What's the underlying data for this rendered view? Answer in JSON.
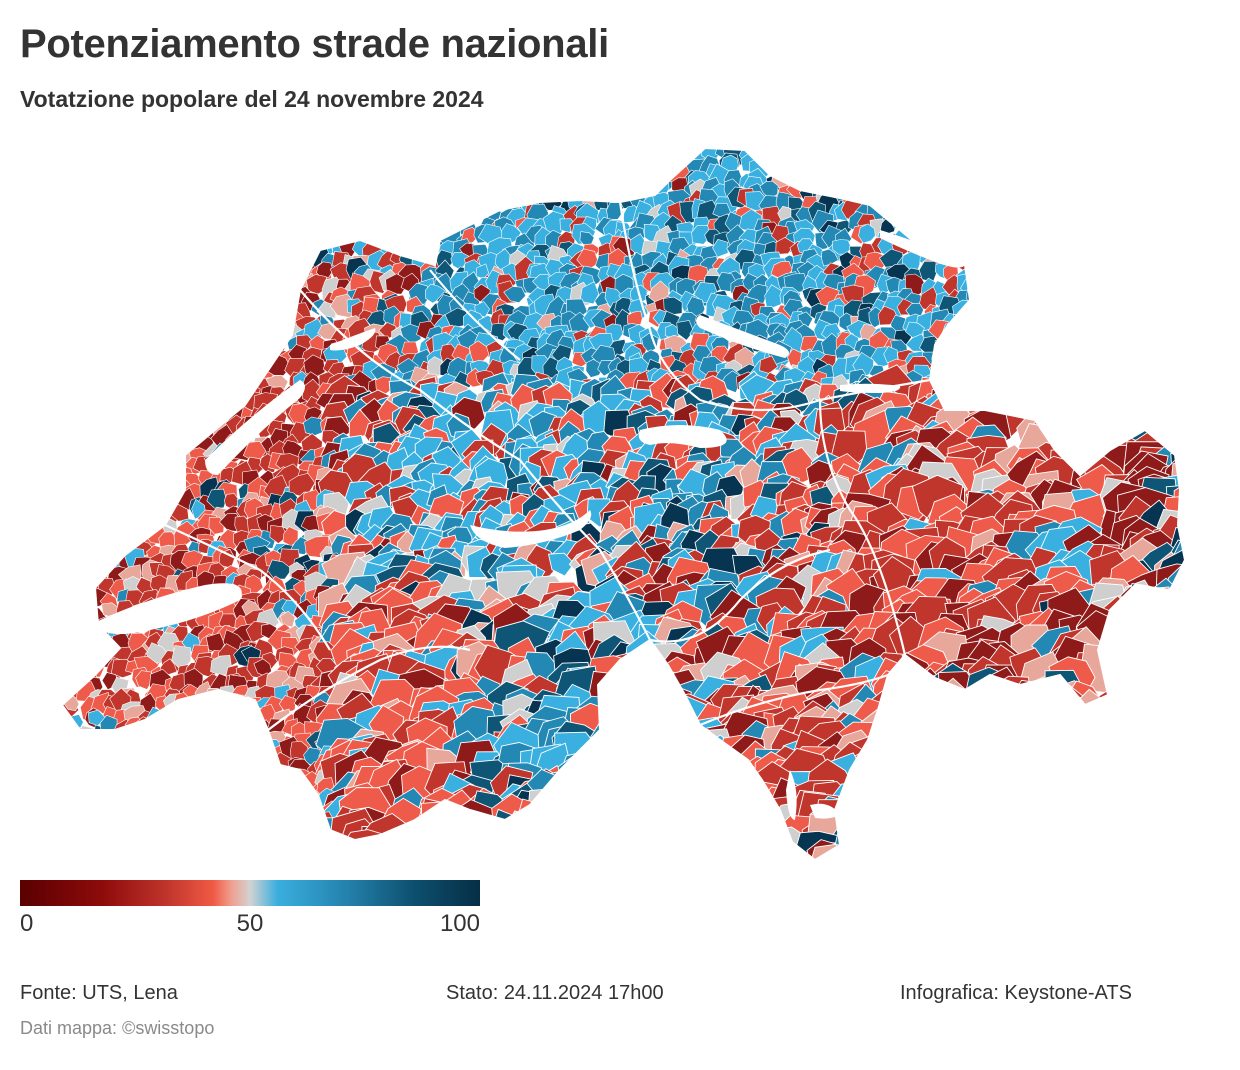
{
  "header": {
    "title": "Potenziamento strade nazionali",
    "subtitle": "Votatzione popolare del 24 novembre 2024"
  },
  "legend": {
    "min_label": "0",
    "mid_label": "50",
    "max_label": "100",
    "colors": [
      "#5a0000",
      "#8e0b0b",
      "#c0352c",
      "#f05a44",
      "#d2d2d2",
      "#3aaede",
      "#2585b0",
      "#0d4e6e",
      "#062f45"
    ]
  },
  "footer": {
    "source": "Fonte: UTS, Lena",
    "status": "Stato: 24.11.2024 17h00",
    "credit": "Infografica: Keystone-ATS",
    "map_credit": "Dati mappa: ©swisstopo"
  },
  "map": {
    "palette": {
      "dark_red": "#8e1a1a",
      "red": "#c0352c",
      "light_red": "#ef5b4a",
      "pale_red": "#e8a79b",
      "grey": "#cfcfcf",
      "light_blue": "#3ab0e0",
      "blue": "#2488b4",
      "dark_blue": "#0f5676",
      "navy": "#063451",
      "border": "#ffffff"
    }
  }
}
